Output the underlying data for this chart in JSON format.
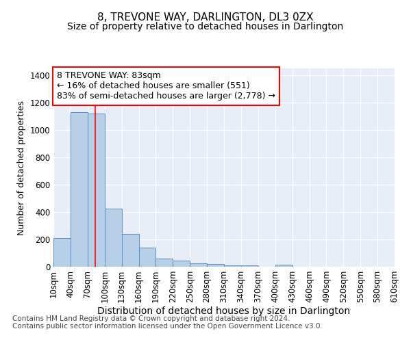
{
  "title": "8, TREVONE WAY, DARLINGTON, DL3 0ZX",
  "subtitle": "Size of property relative to detached houses in Darlington",
  "xlabel": "Distribution of detached houses by size in Darlington",
  "ylabel": "Number of detached properties",
  "footer_line1": "Contains HM Land Registry data © Crown copyright and database right 2024.",
  "footer_line2": "Contains public sector information licensed under the Open Government Licence v3.0.",
  "annotation_line1": "8 TREVONE WAY: 83sqm",
  "annotation_line2": "← 16% of detached houses are smaller (551)",
  "annotation_line3": "83% of semi-detached houses are larger (2,778) →",
  "bar_color": "#b8cfe8",
  "bar_edge_color": "#5a8fc4",
  "background_color": "#e8eef7",
  "grid_color": "#ffffff",
  "red_line_x": 83,
  "bin_edges": [
    10,
    40,
    70,
    100,
    130,
    160,
    190,
    220,
    250,
    280,
    310,
    340,
    370,
    400,
    430,
    460,
    490,
    520,
    550,
    580,
    610
  ],
  "bin_counts": [
    210,
    1130,
    1120,
    425,
    240,
    140,
    60,
    45,
    25,
    18,
    12,
    12,
    0,
    15,
    0,
    0,
    0,
    0,
    0,
    0
  ],
  "tick_labels": [
    "10sqm",
    "40sqm",
    "70sqm",
    "100sqm",
    "130sqm",
    "160sqm",
    "190sqm",
    "220sqm",
    "250sqm",
    "280sqm",
    "310sqm",
    "340sqm",
    "370sqm",
    "400sqm",
    "430sqm",
    "460sqm",
    "490sqm",
    "520sqm",
    "550sqm",
    "580sqm",
    "610sqm"
  ],
  "ylim": [
    0,
    1450
  ],
  "yticks": [
    0,
    200,
    400,
    600,
    800,
    1000,
    1200,
    1400
  ],
  "title_fontsize": 11,
  "subtitle_fontsize": 10,
  "xlabel_fontsize": 10,
  "ylabel_fontsize": 9,
  "tick_fontsize": 8.5,
  "annotation_fontsize": 9,
  "footer_fontsize": 7.5
}
